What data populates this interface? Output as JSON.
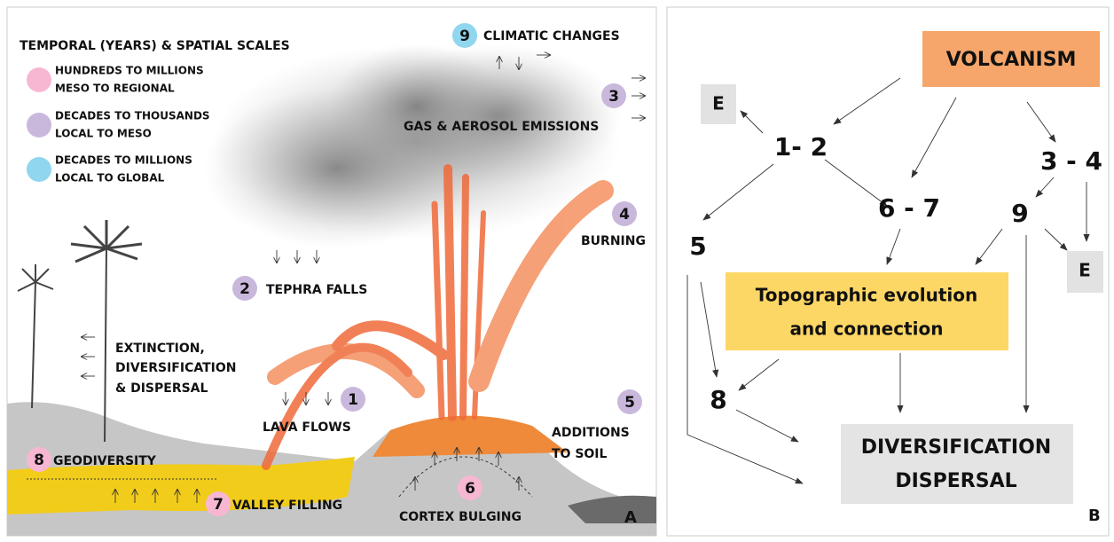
{
  "panel_a": {
    "legend": {
      "title": "TEMPORAL (YEARS) & SPATIAL SCALES",
      "items": [
        [
          "HUNDREDS TO MILLIONS",
          "MESO TO REGIONAL"
        ],
        [
          "DECADES TO THOUSANDS",
          "LOCAL TO MESO"
        ],
        [
          "DECADES TO MILLIONS",
          "LOCAL TO GLOBAL"
        ]
      ]
    },
    "processes": [
      {
        "number": "9",
        "label": [
          "CLIMATIC CHANGES"
        ]
      },
      {
        "number": "3",
        "label": [
          "GAS & AEROSOL EMISSIONS"
        ]
      },
      {
        "number": "4",
        "label": [
          "BURNING"
        ]
      },
      {
        "number": "2",
        "label": [
          "TEPHRA FALLS"
        ]
      },
      {
        "number": "1",
        "label": [
          "LAVA FLOWS"
        ]
      },
      {
        "number": "5",
        "label": [
          "ADDITIONS",
          "TO SOIL"
        ]
      },
      {
        "number": "8",
        "label": [
          "GEODIVERSITY"
        ]
      },
      {
        "number": "7",
        "label": [
          "VALLEY FILLING"
        ]
      },
      {
        "number": "6",
        "label": [
          "CORTEX BULGING"
        ]
      }
    ],
    "biota": [
      "EXTINCTION,",
      "DIVERSIFICATION",
      "& DISPERSAL"
    ],
    "panel_label": "A"
  },
  "panel_b": {
    "nodes": [
      {
        "label": [
          "VOLCANISM"
        ]
      },
      {
        "label": [
          "E"
        ]
      },
      {
        "label": [
          "1- 2"
        ]
      },
      {
        "label": [
          "3 - 4"
        ]
      },
      {
        "label": [
          "6 - 7"
        ]
      },
      {
        "label": [
          "9"
        ]
      },
      {
        "label": [
          "5"
        ]
      },
      {
        "label": [
          "E"
        ]
      },
      {
        "label": [
          "Topographic evolution",
          "and connection"
        ]
      },
      {
        "label": [
          "8"
        ]
      },
      {
        "label": [
          "DIVERSIFICATION",
          "DISPERSAL"
        ]
      }
    ],
    "panel_label": "B"
  }
}
